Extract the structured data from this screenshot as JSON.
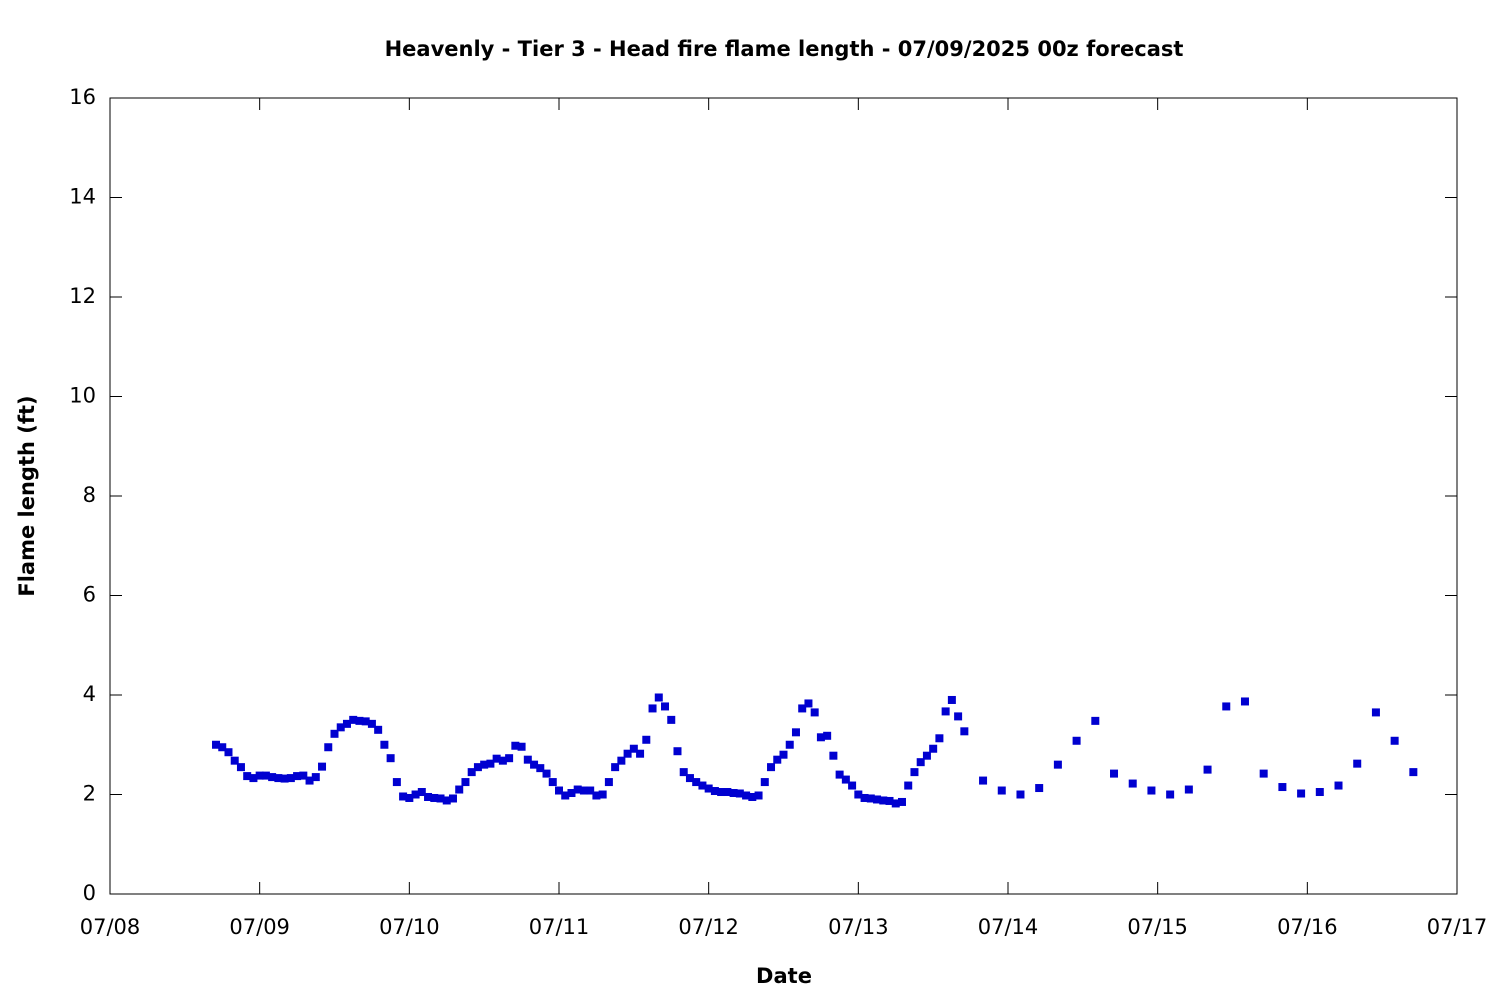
{
  "chart_data": {
    "type": "scatter",
    "title": "Heavenly - Tier 3 - Head fire flame length - 07/09/2025 00z forecast",
    "xlabel": "Date",
    "ylabel": "Flame length (ft)",
    "color": "#0000d0",
    "xlim": [
      0,
      216
    ],
    "xticks": [
      {
        "value": 0,
        "label": "07/08"
      },
      {
        "value": 24,
        "label": "07/09"
      },
      {
        "value": 48,
        "label": "07/10"
      },
      {
        "value": 72,
        "label": "07/11"
      },
      {
        "value": 96,
        "label": "07/12"
      },
      {
        "value": 120,
        "label": "07/13"
      },
      {
        "value": 144,
        "label": "07/14"
      },
      {
        "value": 168,
        "label": "07/15"
      },
      {
        "value": 192,
        "label": "07/16"
      },
      {
        "value": 216,
        "label": "07/17"
      }
    ],
    "ylim": [
      0,
      16
    ],
    "yticks": [
      0,
      2,
      4,
      6,
      8,
      10,
      12,
      14,
      16
    ],
    "x": [
      17,
      18,
      19,
      20,
      21,
      22,
      23,
      24,
      25,
      26,
      27,
      28,
      29,
      30,
      31,
      32,
      33,
      34,
      35,
      36,
      37,
      38,
      39,
      40,
      41,
      42,
      43,
      44,
      45,
      46,
      47,
      48,
      49,
      50,
      51,
      52,
      53,
      54,
      55,
      56,
      57,
      58,
      59,
      60,
      61,
      62,
      63,
      64,
      65,
      66,
      67,
      68,
      69,
      70,
      71,
      72,
      73,
      74,
      75,
      76,
      77,
      78,
      79,
      80,
      81,
      82,
      83,
      84,
      85,
      86,
      87,
      88,
      89,
      90,
      91,
      92,
      93,
      94,
      95,
      96,
      97,
      98,
      99,
      100,
      101,
      102,
      103,
      104,
      105,
      106,
      107,
      108,
      109,
      110,
      111,
      112,
      113,
      114,
      115,
      116,
      117,
      118,
      119,
      120,
      121,
      122,
      123,
      124,
      125,
      126,
      127,
      128,
      129,
      130,
      131,
      132,
      133,
      134,
      135,
      136,
      137,
      140,
      143,
      146,
      149,
      152,
      155,
      158,
      161,
      164,
      167,
      170,
      173,
      176,
      179,
      182,
      185,
      188,
      191,
      194,
      197,
      200,
      203,
      206,
      209
    ],
    "values": [
      3.0,
      2.95,
      2.85,
      2.68,
      2.55,
      2.37,
      2.33,
      2.38,
      2.38,
      2.35,
      2.33,
      2.32,
      2.33,
      2.37,
      2.38,
      2.28,
      2.35,
      2.56,
      2.95,
      3.22,
      3.35,
      3.42,
      3.5,
      3.48,
      3.47,
      3.42,
      3.3,
      3.0,
      2.73,
      2.25,
      1.96,
      1.93,
      2.0,
      2.05,
      1.95,
      1.93,
      1.92,
      1.88,
      1.92,
      2.1,
      2.25,
      2.45,
      2.55,
      2.6,
      2.62,
      2.72,
      2.68,
      2.73,
      2.98,
      2.96,
      2.7,
      2.6,
      2.53,
      2.42,
      2.25,
      2.08,
      1.98,
      2.03,
      2.1,
      2.08,
      2.08,
      1.98,
      2.0,
      2.25,
      2.55,
      2.68,
      2.82,
      2.92,
      2.82,
      3.1,
      3.73,
      3.95,
      3.77,
      3.5,
      2.87,
      2.45,
      2.33,
      2.25,
      2.18,
      2.12,
      2.07,
      2.05,
      2.05,
      2.03,
      2.02,
      1.98,
      1.95,
      1.98,
      2.25,
      2.55,
      2.7,
      2.8,
      3.0,
      3.25,
      3.73,
      3.83,
      3.65,
      3.15,
      3.18,
      2.78,
      2.4,
      2.3,
      2.18,
      2.0,
      1.93,
      1.92,
      1.9,
      1.88,
      1.87,
      1.82,
      1.85,
      2.18,
      2.45,
      2.65,
      2.78,
      2.92,
      3.13,
      3.67,
      3.9,
      3.57,
      3.27,
      2.28,
      2.08,
      2.0,
      2.13,
      2.6,
      3.08,
      3.48,
      2.42,
      2.22,
      2.08,
      2.0,
      2.1,
      2.5,
      3.77,
      3.87,
      2.42,
      2.15,
      2.02,
      2.05,
      2.18,
      2.62,
      3.65,
      3.08,
      2.45
    ]
  }
}
